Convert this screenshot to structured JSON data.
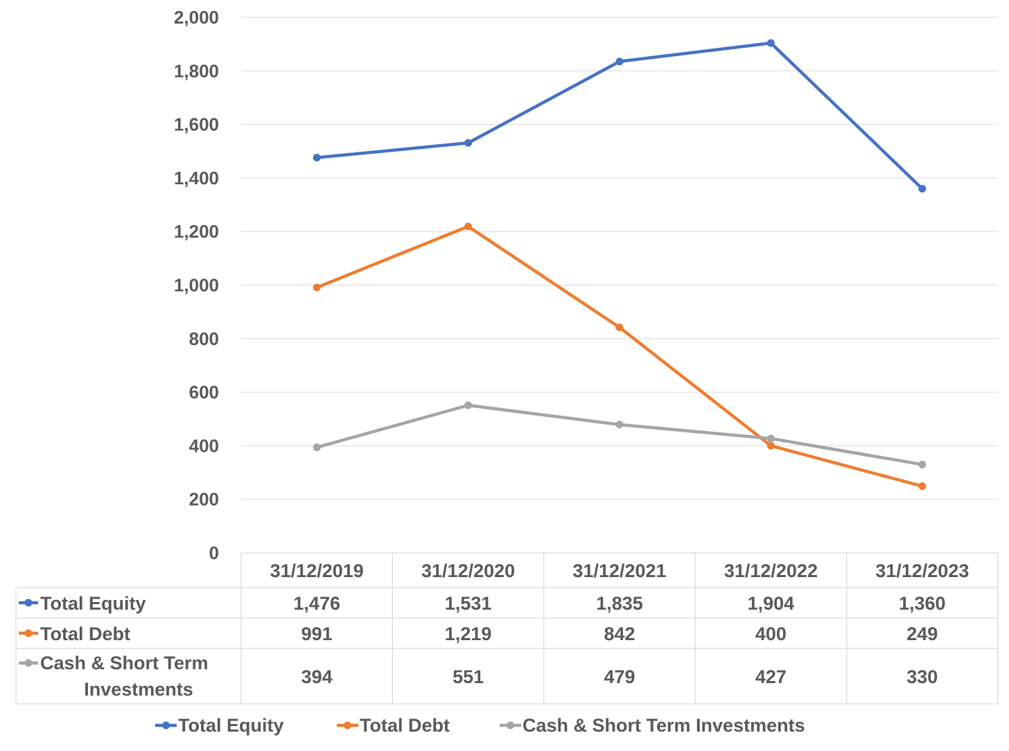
{
  "chart_data": {
    "type": "line",
    "title": "",
    "xlabel": "",
    "ylabel": "",
    "categories": [
      "31/12/2019",
      "31/12/2020",
      "31/12/2021",
      "31/12/2022",
      "31/12/2023"
    ],
    "ylim": [
      0,
      2000
    ],
    "yticks": [
      0,
      200,
      400,
      600,
      800,
      1000,
      1200,
      1400,
      1600,
      1800,
      2000
    ],
    "ytick_labels": [
      "0",
      "200",
      "400",
      "600",
      "800",
      "1,000",
      "1,200",
      "1,400",
      "1,600",
      "1,800",
      "2,000"
    ],
    "grid": true,
    "legend_position": "bottom",
    "data_table": true,
    "series": [
      {
        "name": "Total Equity",
        "table_label_lines": [
          "Total Equity"
        ],
        "color": "#4472C4",
        "values": [
          1476,
          1531,
          1835,
          1904,
          1360
        ],
        "value_labels": [
          "1,476",
          "1,531",
          "1,835",
          "1,904",
          "1,360"
        ]
      },
      {
        "name": "Total Debt",
        "table_label_lines": [
          "Total Debt"
        ],
        "color": "#ED7D31",
        "values": [
          991,
          1219,
          842,
          400,
          249
        ],
        "value_labels": [
          "991",
          "1,219",
          "842",
          "400",
          "249"
        ]
      },
      {
        "name": "Cash & Short Term Investments",
        "table_label_lines": [
          "Cash & Short Term",
          "Investments"
        ],
        "color": "#A5A5A5",
        "values": [
          394,
          551,
          479,
          427,
          330
        ],
        "value_labels": [
          "394",
          "551",
          "479",
          "427",
          "330"
        ]
      }
    ]
  }
}
